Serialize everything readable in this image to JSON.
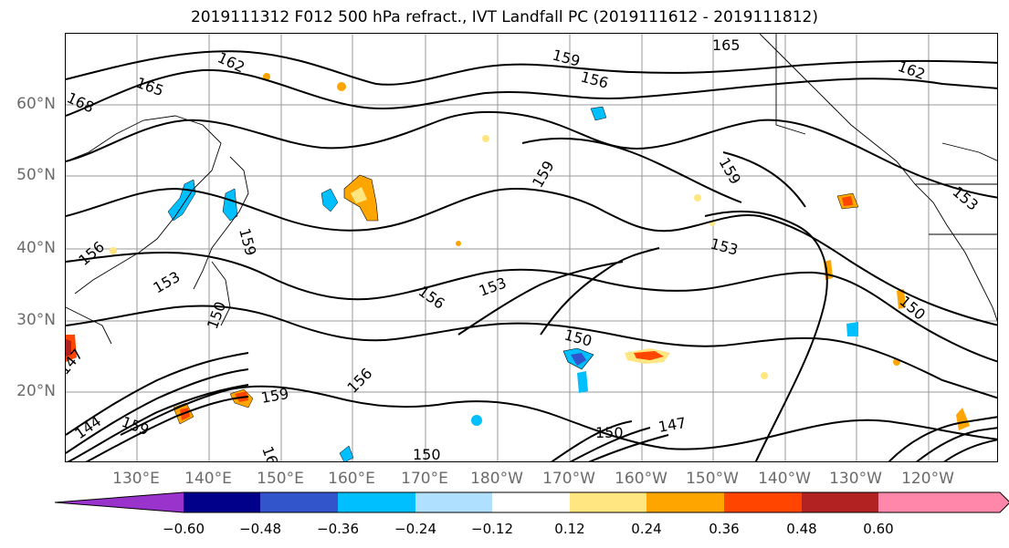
{
  "title": "2019111312 F012 500 hPa refract., IVT Landfall PC (2019111612 - 2019111812)",
  "lat_labels": [
    "60°N",
    "50°N",
    "40°N",
    "30°N",
    "20°N"
  ],
  "lon_labels": [
    "130°E",
    "140°E",
    "150°E",
    "160°E",
    "170°E",
    "180°W",
    "170°W",
    "160°W",
    "150°W",
    "140°W",
    "130°W",
    "120°W"
  ],
  "contour_labels": [
    "168",
    "165",
    "162",
    "159",
    "156",
    "153",
    "150",
    "147",
    "144",
    "159",
    "150",
    "150",
    "165",
    "162",
    "159",
    "156",
    "159",
    "153",
    "159",
    "153",
    "150",
    "153",
    "156",
    "147",
    "150",
    "162",
    "159",
    "156"
  ],
  "colorbar": {
    "colors": [
      "#9933cc",
      "#00008b",
      "#3355cc",
      "#00bfff",
      "#b0e0ff",
      "#ffffff",
      "#ffe680",
      "#ffa500",
      "#ff4500",
      "#b22222",
      "#ff88aa"
    ],
    "ticks": [
      "−0.60",
      "−0.48",
      "−0.36",
      "−0.24",
      "−0.12",
      "0.12",
      "0.24",
      "0.36",
      "0.48",
      "0.60"
    ]
  }
}
